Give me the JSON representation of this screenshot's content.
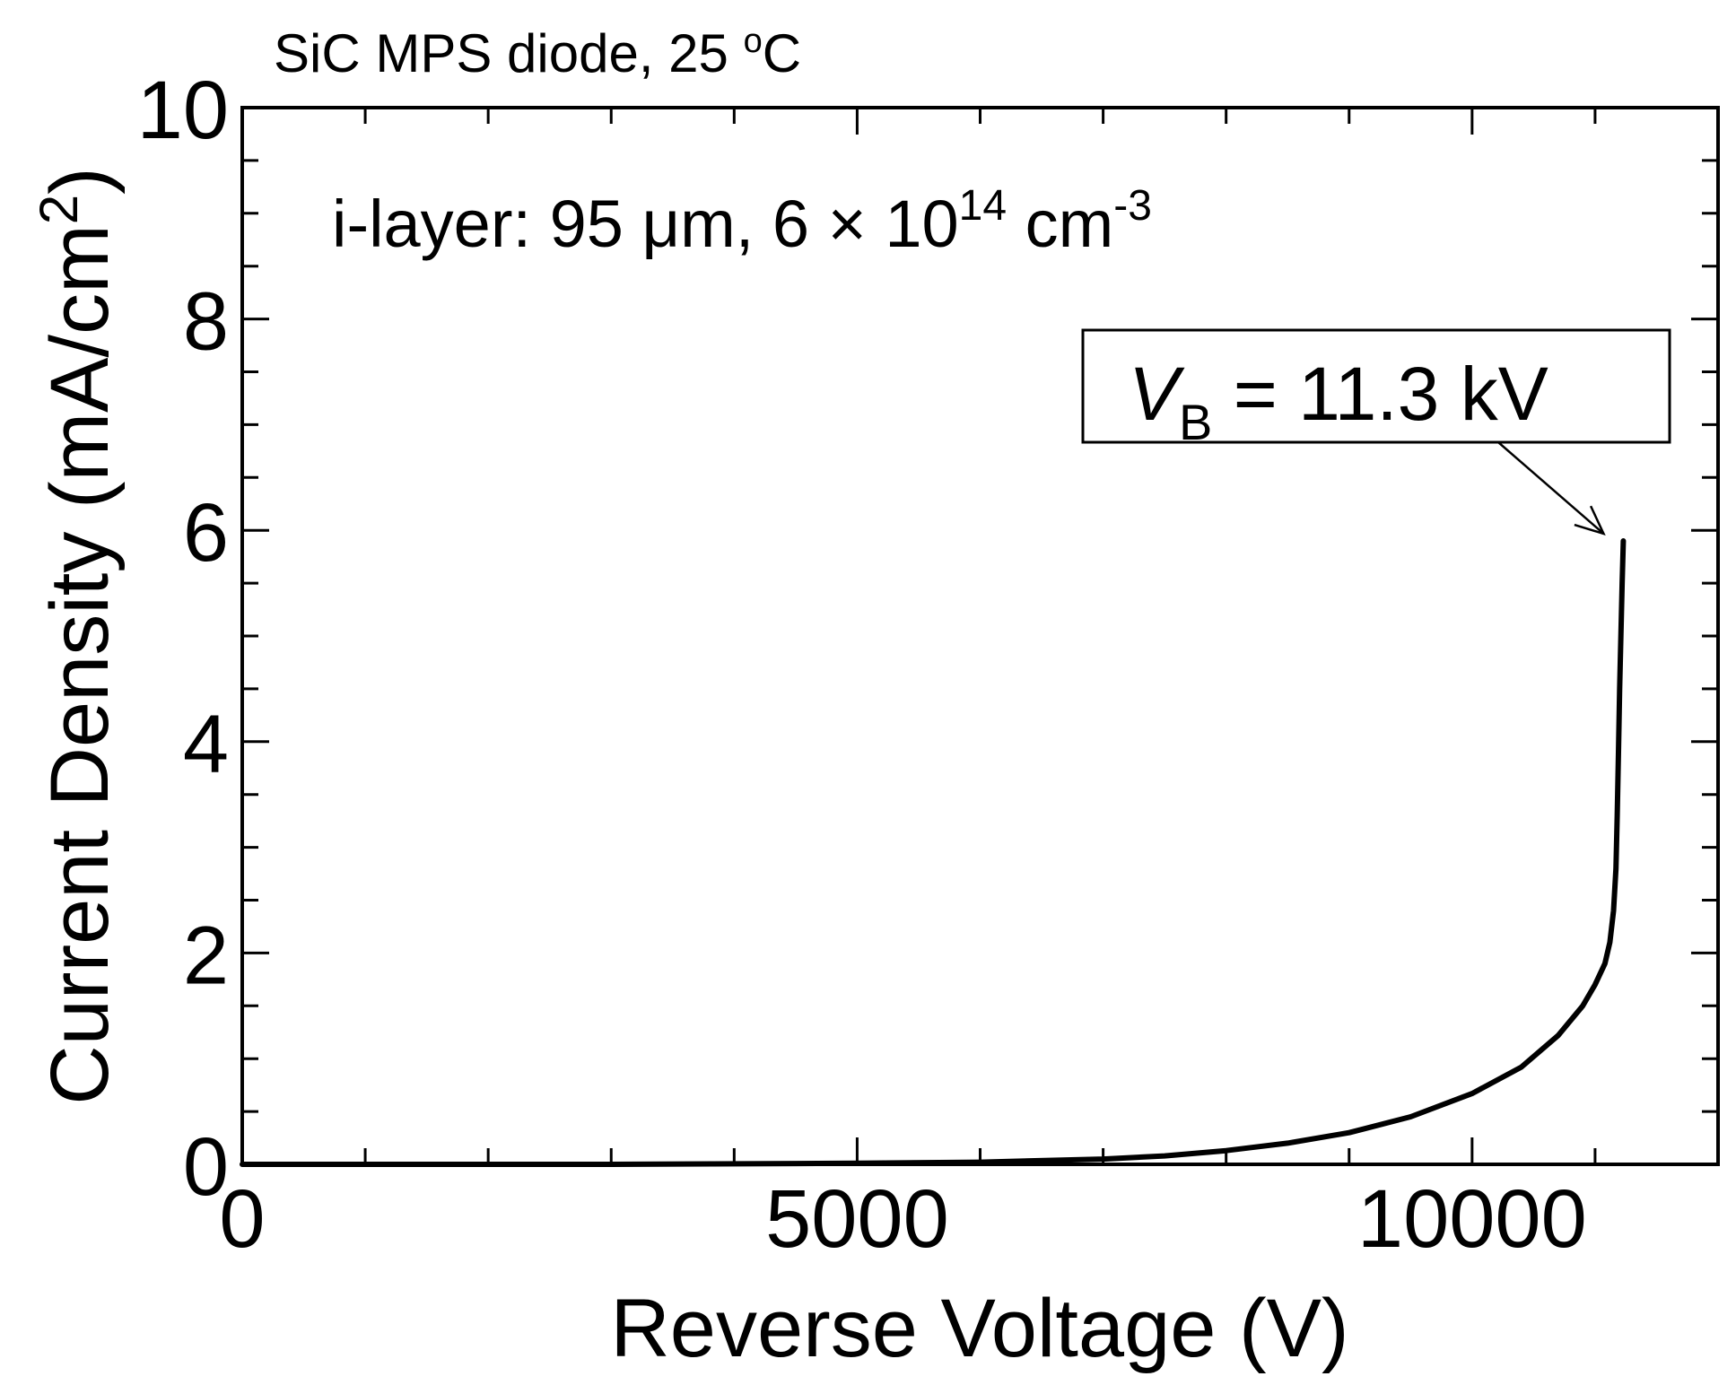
{
  "chart_data": {
    "type": "line",
    "title": "SiC MPS diode, 25 ",
    "title_sup": "o",
    "title_tail": "C",
    "annotation": {
      "text_main": "i-layer: 95 μm, 6 × 10",
      "sup1": "14",
      "text_mid": " cm",
      "sup2": "-3"
    },
    "callout": {
      "v": "V",
      "sub": "B",
      "rest": " = 11.3 kV",
      "points_to": {
        "x": 11230,
        "y": 5.9
      }
    },
    "xlabel": "Reverse Voltage (V)",
    "ylabel": "Current Density (mA/cm",
    "ylabel_sup": "2",
    "ylabel_tail": ")",
    "xlim": [
      0,
      12000
    ],
    "ylim": [
      0,
      10
    ],
    "x_major_ticks": [
      0,
      5000,
      10000
    ],
    "x_tick_labels": [
      "0",
      "5000",
      "10000"
    ],
    "x_minor_step": 1000,
    "y_major_ticks": [
      0,
      2,
      4,
      6,
      8,
      10
    ],
    "y_tick_labels": [
      "0",
      "2",
      "4",
      "6",
      "8",
      "10"
    ],
    "y_minor_step": 0.5,
    "grid": false,
    "series": [
      {
        "x": [
          0,
          3000,
          5000,
          6000,
          7000,
          7500,
          8000,
          8500,
          9000,
          9500,
          10000,
          10400,
          10700,
          10900,
          11000,
          11080,
          11120,
          11150,
          11170,
          11180,
          11190,
          11200,
          11210,
          11220,
          11230
        ],
        "y": [
          0,
          0,
          0.01,
          0.02,
          0.05,
          0.08,
          0.13,
          0.2,
          0.3,
          0.45,
          0.67,
          0.92,
          1.22,
          1.5,
          1.7,
          1.9,
          2.1,
          2.4,
          2.8,
          3.3,
          3.9,
          4.5,
          5.0,
          5.5,
          5.9
        ]
      }
    ],
    "colors": {
      "line": "#000000",
      "axis": "#000000",
      "background": "#ffffff"
    }
  }
}
